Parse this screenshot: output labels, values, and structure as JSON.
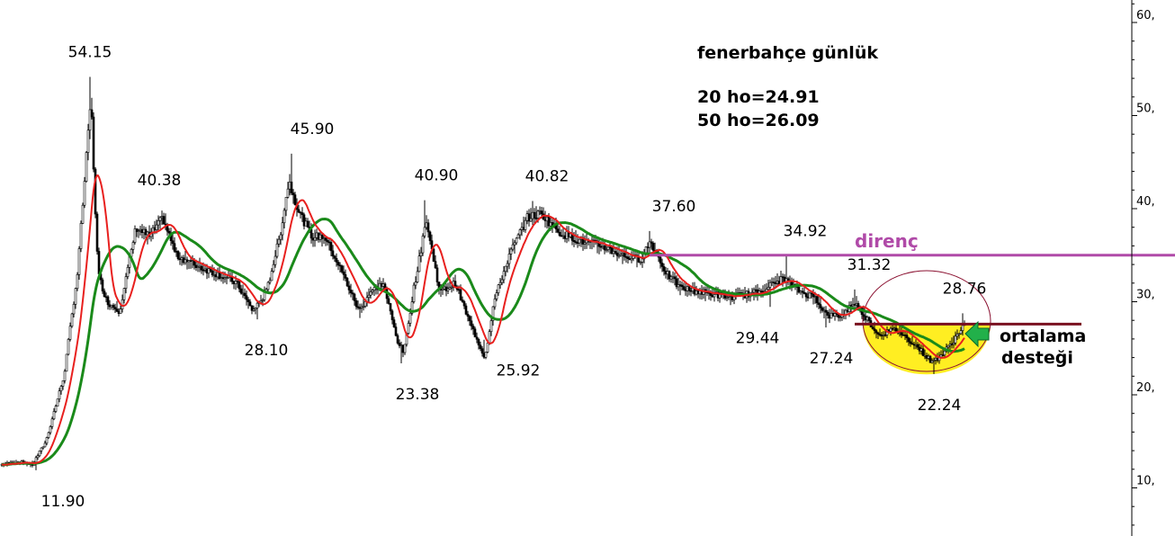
{
  "colors": {
    "candles": "#000000",
    "ma20": "#e8201e",
    "ma50": "#1a8a1a",
    "resistance": "#b04aa8",
    "support_line": "#7a1020",
    "highlight_fill": "#ffee22",
    "highlight_stroke": "#8a1030",
    "arrow": "#22b04a"
  },
  "header": {
    "title": "fenerbahçe günlük",
    "ma20_text": "20 ho=24.91",
    "ma50_text": "50 ho=26.09"
  },
  "annotations": {
    "resistance_label": "direnç",
    "support_label_line1": "ortalama",
    "support_label_line2": "desteği"
  },
  "chart_data": {
    "type": "candlestick",
    "title": "fenerbahçe günlük",
    "y_axis": {
      "position": "right",
      "range": [
        5,
        63
      ],
      "ticks": [
        10,
        20,
        30,
        40,
        50,
        60
      ],
      "tick_labels": [
        "10,",
        "20,",
        "30,",
        "40,",
        "50,",
        "60,"
      ]
    },
    "price_anchors": [
      {
        "t": 0,
        "v": 12.5
      },
      {
        "t": 20,
        "v": 12.8
      },
      {
        "t": 35,
        "v": 12.5
      },
      {
        "t": 50,
        "v": 15
      },
      {
        "t": 70,
        "v": 22
      },
      {
        "t": 85,
        "v": 33
      },
      {
        "t": 97,
        "v": 48
      },
      {
        "t": 100,
        "v": 52
      },
      {
        "t": 104,
        "v": 42
      },
      {
        "t": 108,
        "v": 33
      },
      {
        "t": 118,
        "v": 30
      },
      {
        "t": 132,
        "v": 29
      },
      {
        "t": 140,
        "v": 33
      },
      {
        "t": 150,
        "v": 38
      },
      {
        "t": 165,
        "v": 37
      },
      {
        "t": 180,
        "v": 39
      },
      {
        "t": 195,
        "v": 35
      },
      {
        "t": 215,
        "v": 34
      },
      {
        "t": 240,
        "v": 33
      },
      {
        "t": 262,
        "v": 32
      },
      {
        "t": 280,
        "v": 29
      },
      {
        "t": 295,
        "v": 31
      },
      {
        "t": 310,
        "v": 37
      },
      {
        "t": 320,
        "v": 43
      },
      {
        "t": 330,
        "v": 40
      },
      {
        "t": 345,
        "v": 37
      },
      {
        "t": 360,
        "v": 37
      },
      {
        "t": 380,
        "v": 33
      },
      {
        "t": 398,
        "v": 29
      },
      {
        "t": 410,
        "v": 31
      },
      {
        "t": 425,
        "v": 32
      },
      {
        "t": 440,
        "v": 26
      },
      {
        "t": 448,
        "v": 24.5
      },
      {
        "t": 458,
        "v": 31
      },
      {
        "t": 466,
        "v": 35
      },
      {
        "t": 472,
        "v": 39
      },
      {
        "t": 478,
        "v": 36
      },
      {
        "t": 488,
        "v": 31
      },
      {
        "t": 505,
        "v": 32
      },
      {
        "t": 520,
        "v": 28
      },
      {
        "t": 538,
        "v": 24
      },
      {
        "t": 548,
        "v": 30
      },
      {
        "t": 565,
        "v": 35
      },
      {
        "t": 585,
        "v": 39
      },
      {
        "t": 600,
        "v": 39.5
      },
      {
        "t": 620,
        "v": 37.5
      },
      {
        "t": 645,
        "v": 36.5
      },
      {
        "t": 668,
        "v": 36
      },
      {
        "t": 690,
        "v": 35
      },
      {
        "t": 710,
        "v": 34.5
      },
      {
        "t": 722,
        "v": 36.5
      },
      {
        "t": 740,
        "v": 33
      },
      {
        "t": 755,
        "v": 31.5
      },
      {
        "t": 780,
        "v": 31
      },
      {
        "t": 810,
        "v": 30.5
      },
      {
        "t": 840,
        "v": 31
      },
      {
        "t": 870,
        "v": 32.5
      },
      {
        "t": 890,
        "v": 31
      },
      {
        "t": 905,
        "v": 30.5
      },
      {
        "t": 918,
        "v": 28.5
      },
      {
        "t": 935,
        "v": 28.5
      },
      {
        "t": 948,
        "v": 30
      },
      {
        "t": 960,
        "v": 28.5
      },
      {
        "t": 975,
        "v": 26.5
      },
      {
        "t": 995,
        "v": 27
      },
      {
        "t": 1015,
        "v": 25.5
      },
      {
        "t": 1035,
        "v": 23.5
      },
      {
        "t": 1048,
        "v": 24.5
      },
      {
        "t": 1060,
        "v": 26
      },
      {
        "t": 1070,
        "v": 27.5
      }
    ],
    "spikes": [
      {
        "t": 98,
        "v": 54.15
      },
      {
        "t": 322,
        "v": 45.9
      },
      {
        "t": 470,
        "v": 40.9
      },
      {
        "t": 590,
        "v": 40.82
      },
      {
        "t": 720,
        "v": 37.6
      },
      {
        "t": 872,
        "v": 34.92
      },
      {
        "t": 948,
        "v": 31.32
      },
      {
        "t": 1068,
        "v": 28.76
      },
      {
        "t": 38,
        "v": 11.9
      },
      {
        "t": 285,
        "v": 28.1
      },
      {
        "t": 445,
        "v": 23.38
      },
      {
        "t": 537,
        "v": 25.92
      },
      {
        "t": 855,
        "v": 29.44
      },
      {
        "t": 916,
        "v": 27.24
      },
      {
        "t": 1036,
        "v": 22.24
      }
    ],
    "ma20_label": "20 ho=24.91",
    "ma50_label": "50 ho=26.09",
    "price_labels": [
      {
        "text": "54.15",
        "t": 98,
        "v": 54.15,
        "pos": "above"
      },
      {
        "text": "40.38",
        "t": 175,
        "v": 40.38,
        "pos": "above"
      },
      {
        "text": "45.90",
        "t": 345,
        "v": 45.9,
        "pos": "above"
      },
      {
        "text": "40.90",
        "t": 483,
        "v": 40.9,
        "pos": "above"
      },
      {
        "text": "40.82",
        "t": 606,
        "v": 40.82,
        "pos": "above"
      },
      {
        "text": "37.60",
        "t": 747,
        "v": 37.6,
        "pos": "above"
      },
      {
        "text": "34.92",
        "t": 893,
        "v": 34.92,
        "pos": "above"
      },
      {
        "text": "31.32",
        "t": 964,
        "v": 31.32,
        "pos": "above"
      },
      {
        "text": "28.76",
        "t": 1070,
        "v": 28.76,
        "pos": "above"
      },
      {
        "text": "11.90",
        "t": 68,
        "v": 11.9,
        "pos": "below"
      },
      {
        "text": "28.10",
        "t": 294,
        "v": 28.1,
        "pos": "below"
      },
      {
        "text": "23.38",
        "t": 462,
        "v": 23.38,
        "pos": "below"
      },
      {
        "text": "25.92",
        "t": 574,
        "v": 25.92,
        "pos": "below"
      },
      {
        "text": "29.44",
        "t": 840,
        "v": 29.44,
        "pos": "below"
      },
      {
        "text": "27.24",
        "t": 922,
        "v": 27.24,
        "pos": "below"
      },
      {
        "text": "22.24",
        "t": 1042,
        "v": 22.24,
        "pos": "below"
      }
    ],
    "resistance": {
      "value": 35,
      "t_start": 720,
      "t_end": 1306,
      "label": "direnç"
    },
    "support": {
      "value": 27.6,
      "t_start": 948,
      "t_end": 1160,
      "label": "ortalama desteği"
    },
    "grid": false,
    "legend": "none"
  }
}
